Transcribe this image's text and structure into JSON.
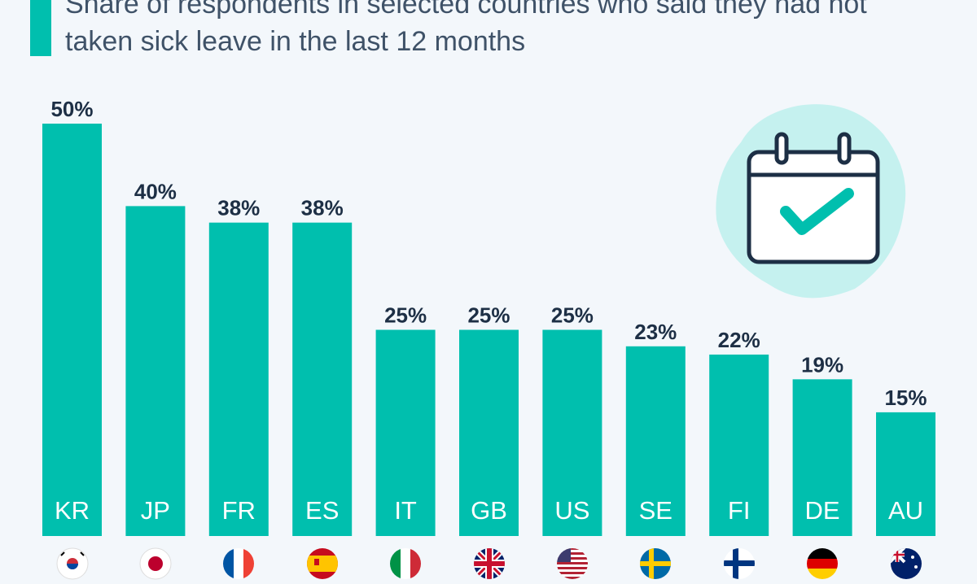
{
  "subtitle": "Share of respondents in selected countries who said they had not taken sick leave in the last 12 months",
  "colors": {
    "bar": "#00bfae",
    "value_label": "#1d2f45",
    "category_label": "#ffffff",
    "icon_blob": "#c5f1ef",
    "icon_stroke": "#1d2f45",
    "check": "#00bfae"
  },
  "icon": "calendar-check-icon",
  "chart_data": {
    "type": "bar",
    "categories": [
      "KR",
      "JP",
      "FR",
      "ES",
      "IT",
      "GB",
      "US",
      "SE",
      "FI",
      "DE",
      "AU"
    ],
    "values": [
      50,
      40,
      38,
      38,
      25,
      25,
      25,
      23,
      22,
      19,
      15
    ],
    "value_labels": [
      "50%",
      "40%",
      "38%",
      "38%",
      "25%",
      "25%",
      "25%",
      "23%",
      "22%",
      "19%",
      "15%"
    ],
    "subtitle": "Share of respondents in selected countries who said they had not taken sick leave in the last 12 months",
    "unit": "%",
    "ylim": [
      0,
      50
    ],
    "grid": false,
    "legend": "none"
  },
  "flags": [
    "south-korea-flag-icon",
    "japan-flag-icon",
    "france-flag-icon",
    "spain-flag-icon",
    "italy-flag-icon",
    "uk-flag-icon",
    "usa-flag-icon",
    "sweden-flag-icon",
    "finland-flag-icon",
    "germany-flag-icon",
    "australia-flag-icon"
  ]
}
